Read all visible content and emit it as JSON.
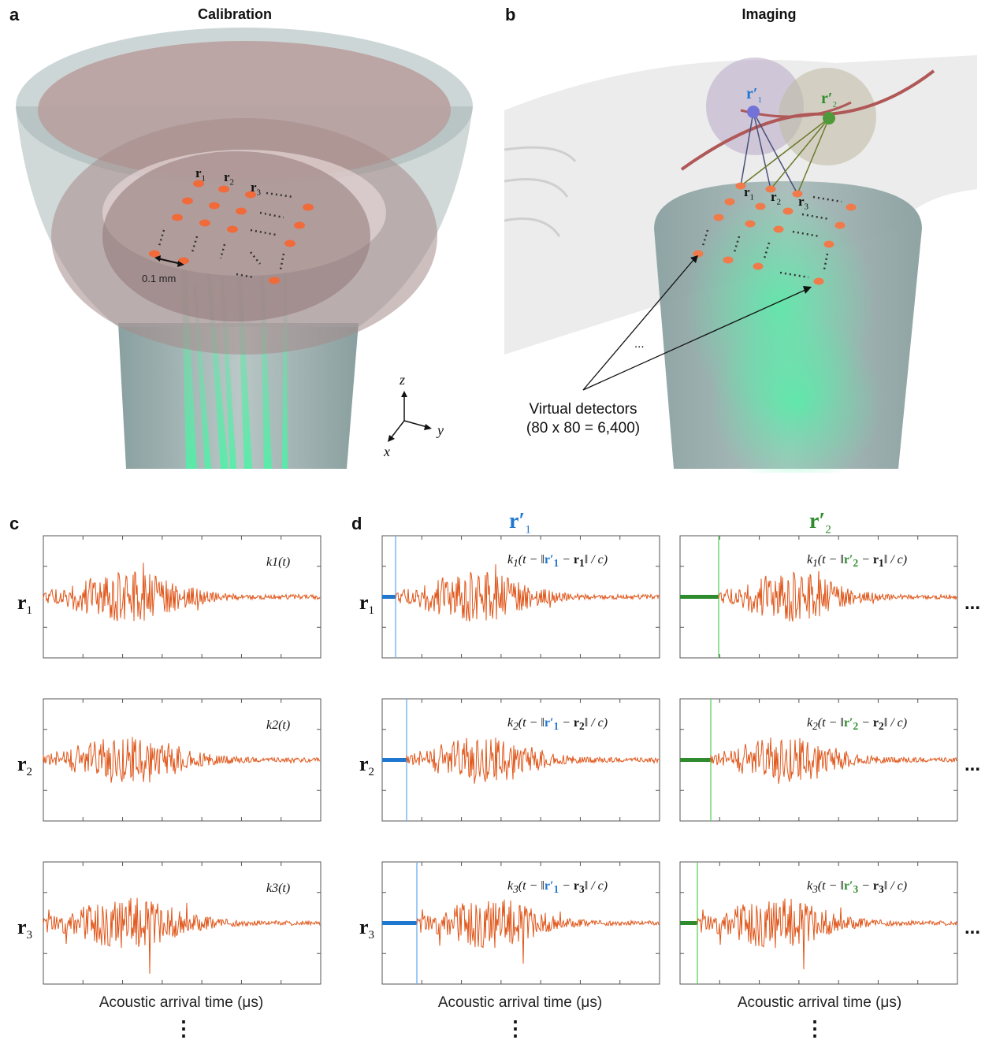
{
  "panels": {
    "a": {
      "letter": "a",
      "title": "Calibration",
      "scale_label": "0.1 mm",
      "point_labels": [
        "r",
        "r",
        "r"
      ],
      "point_subs": [
        "1",
        "2",
        "3"
      ]
    },
    "b": {
      "letter": "b",
      "title": "Imaging",
      "virtual_detectors_line1": "Virtual detectors",
      "virtual_detectors_line2": "(80 x 80 = 6,400)",
      "ellipsis": "...",
      "point_labels": [
        "r",
        "r",
        "r"
      ],
      "point_subs": [
        "1",
        "2",
        "3"
      ],
      "source_labels": [
        "r′",
        "r′"
      ],
      "source_subs": [
        "1",
        "2"
      ]
    },
    "c": {
      "letter": "c",
      "kernels": [
        "k1(t)",
        "k2(t)",
        "k3(t)"
      ],
      "axis_title": "Acoustic arrival time (μs)"
    },
    "d": {
      "letter": "d",
      "columns": [
        {
          "label": "r′",
          "sub": "1",
          "color": "#1f77d0"
        },
        {
          "label": "r′",
          "sub": "2",
          "color": "#2e8b2e"
        }
      ],
      "axis_title": "Acoustic arrival time (μs)",
      "row_ellipsis": "..."
    }
  },
  "rows": [
    {
      "label": "r",
      "sub": "1"
    },
    {
      "label": "r",
      "sub": "2"
    },
    {
      "label": "r",
      "sub": "3"
    }
  ],
  "axes_triad": {
    "z": "z",
    "y": "y",
    "x": "x"
  },
  "vertical_dots": "⋮",
  "colors": {
    "signal": "#e0561a",
    "blue": "#1f77d0",
    "green": "#2e8b2e",
    "detector": "#f06a3a"
  }
}
